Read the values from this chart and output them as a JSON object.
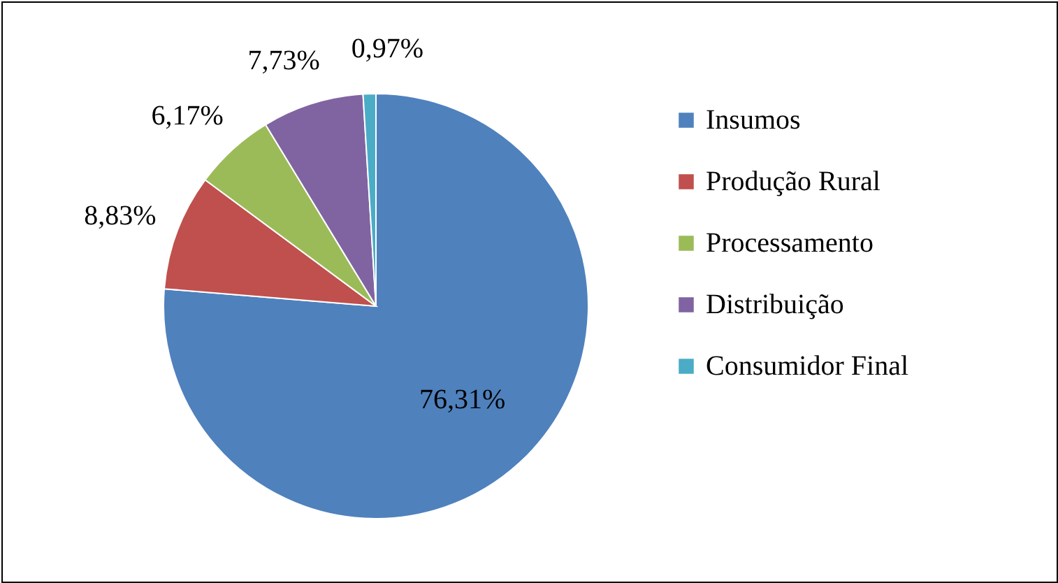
{
  "chart_data": {
    "type": "pie",
    "categories": [
      "Insumos",
      "Produção Rural",
      "Processamento",
      "Distribuição",
      "Consumidor Final"
    ],
    "values": [
      76.31,
      8.83,
      6.17,
      7.73,
      0.97
    ],
    "colors": [
      "#4f81bd",
      "#c0504d",
      "#9bbb59",
      "#8064a2",
      "#4bacc6"
    ],
    "value_labels": [
      "76,31%",
      "8,83%",
      "6,17%",
      "7,73%",
      "0,97%"
    ],
    "legend": "right"
  }
}
